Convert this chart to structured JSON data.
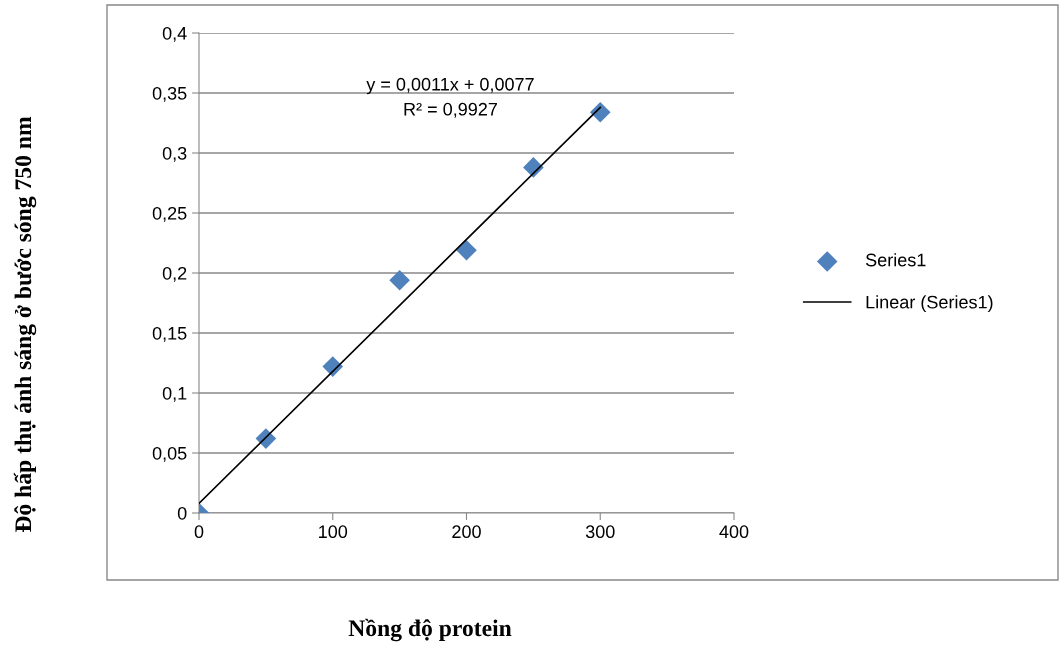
{
  "chart_data": {
    "type": "scatter",
    "xlabel": "Nồng độ protein",
    "ylabel": "Độ hấp thụ ánh sáng ở bước sóng 750 nm",
    "x": [
      0,
      50,
      100,
      150,
      200,
      250,
      300
    ],
    "series": [
      {
        "name": "Series1",
        "color": "#4f81bd",
        "marker": "diamond",
        "values": [
          0,
          0.062,
          0.122,
          0.194,
          0.219,
          0.288,
          0.334
        ]
      },
      {
        "name": "Linear (Series1)",
        "type": "line",
        "color": "#000000",
        "x": [
          0,
          300
        ],
        "values": [
          0.008,
          0.338
        ],
        "line_style": "solid",
        "marker": "none"
      }
    ],
    "annotations": [
      "y = 0,0011x + 0,0077",
      "R² = 0,9927"
    ],
    "xlim": [
      0,
      400
    ],
    "xticks": [
      0,
      100,
      200,
      300,
      400
    ],
    "ylim": [
      0,
      0.4
    ],
    "yticks": [
      0,
      {
        "value": 0.05,
        "label": "0,05"
      },
      {
        "value": 0.1,
        "label": "0,1"
      },
      {
        "value": 0.15,
        "label": "0,15"
      },
      {
        "value": 0.2,
        "label": "0,2"
      },
      {
        "value": 0.25,
        "label": "0,25"
      },
      {
        "value": 0.3,
        "label": "0,3"
      },
      {
        "value": 0.35,
        "label": "0,35"
      },
      {
        "value": 0.4,
        "label": "0,4"
      }
    ],
    "grid": "y",
    "legend": "right"
  }
}
